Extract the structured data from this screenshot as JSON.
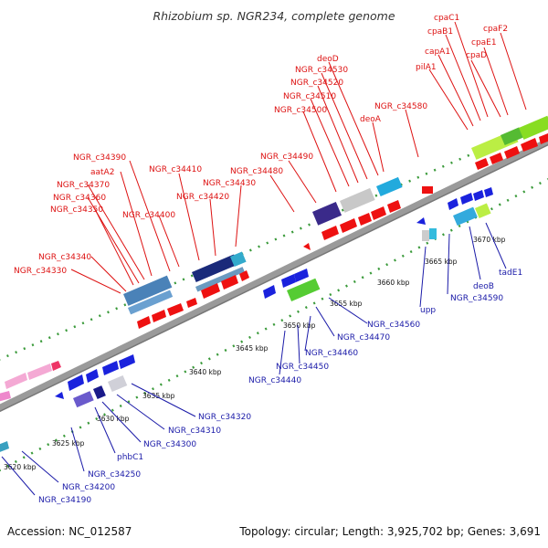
{
  "header": {
    "title": "Rhizobium sp. NGR234, complete genome"
  },
  "footer": {
    "accession": "Accession: NC_012587",
    "summary": "Topology: circular; Length: 3,925,702 bp; Genes: 3,691"
  },
  "colors": {
    "forward_label": "#dd1111",
    "reverse_label": "#1a1aa8",
    "backbone": "#9a9a9a",
    "tick_dots": "#3a9a3a"
  },
  "scale_ticks": [
    "3620 kbp",
    "3625 kbp",
    "3630 kbp",
    "3635 kbp",
    "3640 kbp",
    "3645 kbp",
    "3650 kbp",
    "3655 kbp",
    "3660 kbp",
    "3665 kbp",
    "3670 kbp"
  ],
  "forward_labels": [
    "NGR_c34330",
    "NGR_c34340",
    "NGR_c34350",
    "NGR_c34360",
    "NGR_c34370",
    "aatA2",
    "NGR_c34390",
    "NGR_c34400",
    "NGR_c34410",
    "NGR_c34420",
    "NGR_c34430",
    "NGR_c34480",
    "NGR_c34490",
    "NGR_c34500",
    "NGR_c34510",
    "NGR_c34520",
    "NGR_c34530",
    "deoD",
    "deoA",
    "NGR_c34580",
    "pilA1",
    "capA1",
    "cpaB1",
    "cpaC1",
    "cpaD",
    "cpaE1",
    "cpaF2"
  ],
  "reverse_labels": [
    "NGR_c34190",
    "NGR_c34200",
    "NGR_c34250",
    "phbC1",
    "NGR_c34300",
    "NGR_c34310",
    "NGR_c34320",
    "NGR_c34440",
    "NGR_c34450",
    "NGR_c34460",
    "NGR_c34470",
    "NGR_c34560",
    "upp",
    "NGR_c34590",
    "deoB",
    "tadE1"
  ]
}
